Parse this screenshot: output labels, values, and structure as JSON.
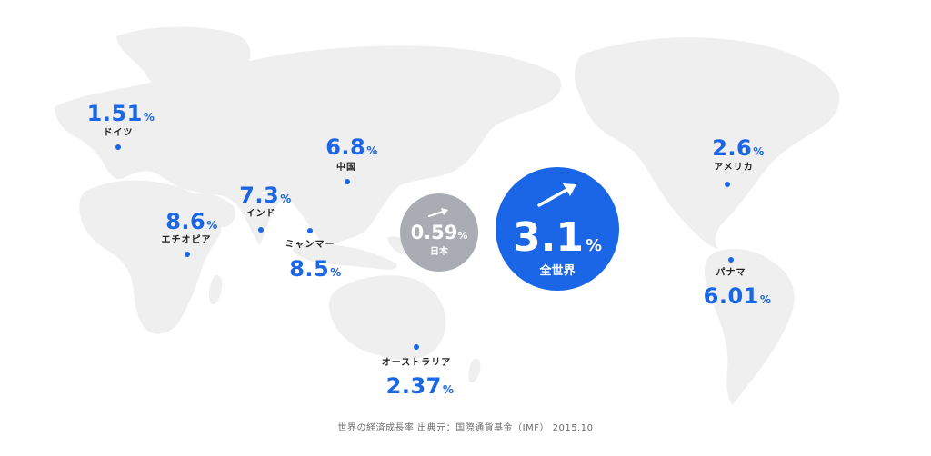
{
  "map": {
    "markers": [
      {
        "id": "germany",
        "name": "ドイツ",
        "value": "1.51",
        "unit": "%"
      },
      {
        "id": "china",
        "name": "中国",
        "value": "6.8",
        "unit": "%"
      },
      {
        "id": "india",
        "name": "インド",
        "value": "7.3",
        "unit": "%"
      },
      {
        "id": "ethiopia",
        "name": "エチオピア",
        "value": "8.6",
        "unit": "%"
      },
      {
        "id": "myanmar",
        "name": "ミャンマー",
        "value": "8.5",
        "unit": "%"
      },
      {
        "id": "australia",
        "name": "オーストラリア",
        "value": "2.37",
        "unit": "%"
      },
      {
        "id": "usa",
        "name": "アメリカ",
        "value": "2.6",
        "unit": "%"
      },
      {
        "id": "panama",
        "name": "パナマ",
        "value": "6.01",
        "unit": "%"
      }
    ],
    "japan": {
      "name": "日本",
      "value": "0.59",
      "unit": "%",
      "color": "#a9adb3",
      "icon": "trend-arrow-icon"
    },
    "world": {
      "name": "全世界",
      "value": "3.1",
      "unit": "%",
      "color": "#1a66e6",
      "icon": "trend-arrow-icon"
    },
    "accent_color": "#1a66e6",
    "land_color": "#efefef"
  },
  "source": "世界の経済成長率 出典元：国際通貨基金（IMF） 2015.10"
}
